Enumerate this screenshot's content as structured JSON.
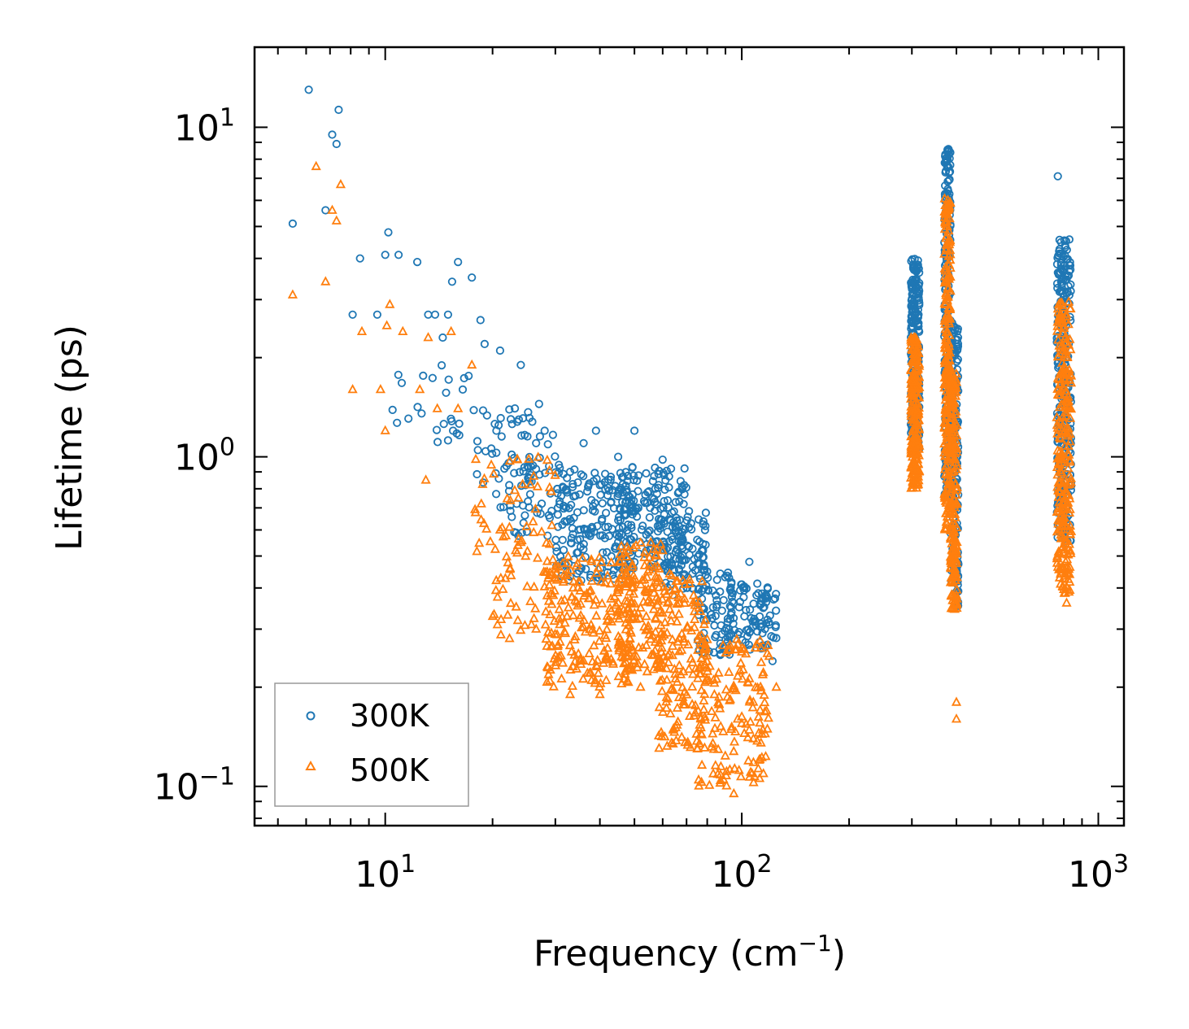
{
  "chart_data": {
    "type": "scatter",
    "title": "",
    "xlabel": "Frequency (cm−1)",
    "xlabel_parts": {
      "base": "Frequency (cm",
      "sup": "−1",
      "close": ")"
    },
    "ylabel": "Lifetime (ps)",
    "xscale": "log",
    "yscale": "log",
    "xlim": [
      4.3,
      1180
    ],
    "ylim": [
      0.076,
      17.5
    ],
    "x_ticks": [
      {
        "value": 10,
        "label": "10",
        "exponent": "1"
      },
      {
        "value": 100,
        "label": "10",
        "exponent": "2"
      },
      {
        "value": 1000,
        "label": "10",
        "exponent": "3"
      }
    ],
    "y_ticks": [
      {
        "value": 0.1,
        "label": "10",
        "exponent": "−1"
      },
      {
        "value": 1,
        "label": "10",
        "exponent": "0"
      },
      {
        "value": 10,
        "label": "10",
        "exponent": "1"
      }
    ],
    "legend_position": "lower-left",
    "series": [
      {
        "name": "300K",
        "color": "#1f77b4",
        "marker": "circle",
        "points": [
          [
            5.5,
            5.1
          ],
          [
            6.1,
            13.0
          ],
          [
            6.8,
            5.6
          ],
          [
            7.1,
            9.5
          ],
          [
            7.4,
            11.3
          ],
          [
            7.3,
            8.9
          ],
          [
            8.1,
            2.7
          ],
          [
            8.5,
            4.0
          ],
          [
            9.5,
            2.7
          ],
          [
            10.0,
            4.1
          ],
          [
            10.2,
            4.8
          ],
          [
            10.9,
            4.1
          ],
          [
            12.3,
            3.9
          ],
          [
            13.2,
            2.7
          ],
          [
            13.8,
            2.7
          ],
          [
            14.5,
            2.3
          ],
          [
            15.0,
            2.7
          ],
          [
            15.4,
            3.4
          ],
          [
            16.0,
            3.9
          ],
          [
            16.5,
            1.6
          ],
          [
            17.5,
            3.5
          ],
          [
            18.5,
            2.6
          ],
          [
            19.0,
            2.2
          ],
          [
            20.5,
            1.2
          ],
          [
            21.0,
            2.1
          ],
          [
            22.5,
            1.3
          ],
          [
            24.0,
            1.9
          ],
          [
            26.5,
            1.1
          ],
          [
            28.0,
            1.2
          ],
          [
            33.0,
            0.9
          ],
          [
            36.0,
            1.1
          ],
          [
            39.0,
            1.2
          ],
          [
            45.0,
            1.0
          ],
          [
            50.0,
            1.2
          ],
          [
            60.0,
            0.98
          ],
          [
            75.0,
            0.56
          ],
          [
            85.0,
            0.35
          ],
          [
            95.0,
            0.36
          ],
          [
            100.0,
            0.41
          ],
          [
            105.0,
            0.48
          ],
          [
            110.0,
            0.38
          ],
          [
            115.0,
            0.37
          ],
          [
            120.0,
            0.33
          ],
          [
            122.0,
            0.24
          ],
          [
            770.0,
            7.1
          ]
        ],
        "bands": [
          {
            "x_min": 9.8,
            "x_max": 18,
            "y_min": 1.05,
            "y_max": 1.9,
            "count": 25
          },
          {
            "x_min": 18,
            "x_max": 30,
            "y_min": 0.7,
            "y_max": 1.45,
            "count": 55
          },
          {
            "x_min": 22,
            "x_max": 35,
            "y_min": 0.55,
            "y_max": 0.95,
            "count": 55
          },
          {
            "x_min": 30,
            "x_max": 50,
            "y_min": 0.42,
            "y_max": 0.9,
            "count": 180
          },
          {
            "x_min": 45,
            "x_max": 70,
            "y_min": 0.45,
            "y_max": 0.95,
            "count": 170
          },
          {
            "x_min": 60,
            "x_max": 80,
            "y_min": 0.38,
            "y_max": 0.7,
            "count": 90
          },
          {
            "x_min": 75,
            "x_max": 95,
            "y_min": 0.25,
            "y_max": 0.45,
            "count": 80
          },
          {
            "x_min": 90,
            "x_max": 125,
            "y_min": 0.26,
            "y_max": 0.42,
            "count": 90
          },
          {
            "x_min": 298,
            "x_max": 315,
            "y_min": 1.05,
            "y_max": 4.0,
            "count": 240
          },
          {
            "x_min": 370,
            "x_max": 385,
            "y_min": 0.75,
            "y_max": 8.6,
            "count": 240
          },
          {
            "x_min": 385,
            "x_max": 405,
            "y_min": 0.35,
            "y_max": 2.6,
            "count": 180
          },
          {
            "x_min": 765,
            "x_max": 840,
            "y_min": 0.55,
            "y_max": 4.6,
            "count": 260
          }
        ]
      },
      {
        "name": "500K",
        "color": "#ff7f0e",
        "marker": "triangle",
        "points": [
          [
            5.5,
            3.1
          ],
          [
            6.4,
            7.6
          ],
          [
            6.8,
            3.4
          ],
          [
            7.3,
            5.2
          ],
          [
            7.5,
            6.7
          ],
          [
            7.1,
            5.6
          ],
          [
            8.1,
            1.6
          ],
          [
            8.6,
            2.4
          ],
          [
            9.7,
            1.6
          ],
          [
            10.0,
            1.2
          ],
          [
            10.1,
            2.5
          ],
          [
            10.3,
            2.9
          ],
          [
            11.2,
            2.4
          ],
          [
            12.5,
            1.6
          ],
          [
            13.0,
            0.85
          ],
          [
            13.2,
            2.3
          ],
          [
            14.0,
            1.4
          ],
          [
            15.3,
            2.4
          ],
          [
            16.0,
            1.4
          ],
          [
            17.5,
            1.9
          ],
          [
            18.6,
            0.72
          ],
          [
            21.0,
            0.6
          ],
          [
            24.0,
            0.55
          ],
          [
            26.5,
            0.3
          ],
          [
            33.0,
            0.19
          ],
          [
            40.0,
            0.19
          ],
          [
            52.0,
            0.2
          ],
          [
            75.0,
            0.13
          ],
          [
            95.0,
            0.095
          ],
          [
            125.0,
            0.2
          ],
          [
            400.0,
            0.16
          ],
          [
            400.0,
            0.18
          ],
          [
            815.0,
            0.36
          ]
        ],
        "bands": [
          {
            "x_min": 17,
            "x_max": 30,
            "y_min": 0.5,
            "y_max": 1.0,
            "count": 50
          },
          {
            "x_min": 20,
            "x_max": 30,
            "y_min": 0.28,
            "y_max": 0.5,
            "count": 40
          },
          {
            "x_min": 28,
            "x_max": 50,
            "y_min": 0.2,
            "y_max": 0.5,
            "count": 220
          },
          {
            "x_min": 45,
            "x_max": 60,
            "y_min": 0.22,
            "y_max": 0.55,
            "count": 150
          },
          {
            "x_min": 58,
            "x_max": 80,
            "y_min": 0.13,
            "y_max": 0.45,
            "count": 160
          },
          {
            "x_min": 75,
            "x_max": 120,
            "y_min": 0.1,
            "y_max": 0.28,
            "count": 160
          },
          {
            "x_min": 298,
            "x_max": 315,
            "y_min": 0.8,
            "y_max": 2.3,
            "count": 240
          },
          {
            "x_min": 370,
            "x_max": 385,
            "y_min": 0.6,
            "y_max": 6.1,
            "count": 240
          },
          {
            "x_min": 385,
            "x_max": 402,
            "y_min": 0.34,
            "y_max": 1.8,
            "count": 180
          },
          {
            "x_min": 765,
            "x_max": 840,
            "y_min": 0.38,
            "y_max": 3.0,
            "count": 260
          }
        ]
      }
    ]
  }
}
